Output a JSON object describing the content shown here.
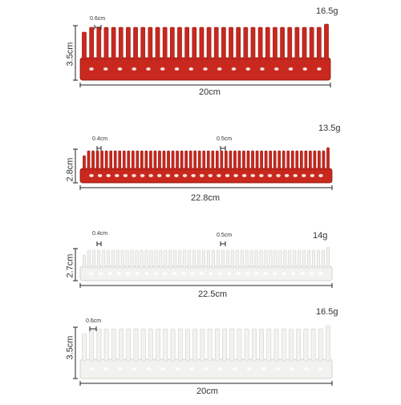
{
  "product": {
    "colors": {
      "red": "#c8281e",
      "red_dark": "#8f150f",
      "white": "#f2f2ef",
      "white_edge": "#c9c9c4",
      "dimension_line": "#222222"
    },
    "combs": [
      {
        "color": "red",
        "weight": "16.5g",
        "length": "20cm",
        "height": "3.5cm",
        "tooth_labels": [
          "0.6cm"
        ]
      },
      {
        "color": "red",
        "weight": "13.5g",
        "length": "22.8cm",
        "height": "2.8cm",
        "tooth_labels": [
          "0.4cm",
          "0.5cm"
        ]
      },
      {
        "color": "white",
        "weight": "14g",
        "length": "22.5cm",
        "height": "2.7cm",
        "tooth_labels": [
          "0.4cm",
          "0.5cm"
        ]
      },
      {
        "color": "white",
        "weight": "16.5g",
        "length": "20cm",
        "height": "3.5cm",
        "tooth_labels": [
          "0.6cm"
        ]
      }
    ]
  }
}
